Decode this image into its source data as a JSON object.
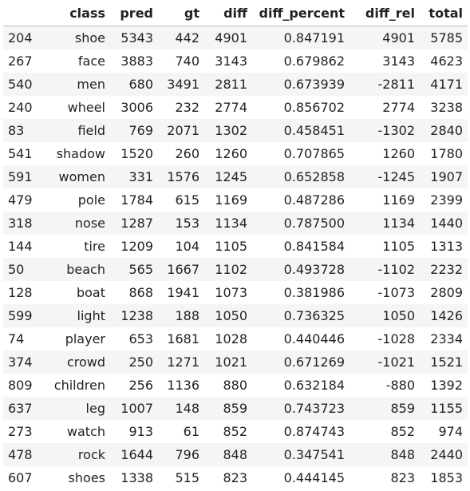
{
  "columns": [
    "",
    "class",
    "pred",
    "gt",
    "diff",
    "diff_percent",
    "diff_rel",
    "total"
  ],
  "rows": [
    [
      "204",
      "shoe",
      "5343",
      "442",
      "4901",
      "0.847191",
      "4901",
      "5785"
    ],
    [
      "267",
      "face",
      "3883",
      "740",
      "3143",
      "0.679862",
      "3143",
      "4623"
    ],
    [
      "540",
      "men",
      "680",
      "3491",
      "2811",
      "0.673939",
      "-2811",
      "4171"
    ],
    [
      "240",
      "wheel",
      "3006",
      "232",
      "2774",
      "0.856702",
      "2774",
      "3238"
    ],
    [
      "83",
      "field",
      "769",
      "2071",
      "1302",
      "0.458451",
      "-1302",
      "2840"
    ],
    [
      "541",
      "shadow",
      "1520",
      "260",
      "1260",
      "0.707865",
      "1260",
      "1780"
    ],
    [
      "591",
      "women",
      "331",
      "1576",
      "1245",
      "0.652858",
      "-1245",
      "1907"
    ],
    [
      "479",
      "pole",
      "1784",
      "615",
      "1169",
      "0.487286",
      "1169",
      "2399"
    ],
    [
      "318",
      "nose",
      "1287",
      "153",
      "1134",
      "0.787500",
      "1134",
      "1440"
    ],
    [
      "144",
      "tire",
      "1209",
      "104",
      "1105",
      "0.841584",
      "1105",
      "1313"
    ],
    [
      "50",
      "beach",
      "565",
      "1667",
      "1102",
      "0.493728",
      "-1102",
      "2232"
    ],
    [
      "128",
      "boat",
      "868",
      "1941",
      "1073",
      "0.381986",
      "-1073",
      "2809"
    ],
    [
      "599",
      "light",
      "1238",
      "188",
      "1050",
      "0.736325",
      "1050",
      "1426"
    ],
    [
      "74",
      "player",
      "653",
      "1681",
      "1028",
      "0.440446",
      "-1028",
      "2334"
    ],
    [
      "374",
      "crowd",
      "250",
      "1271",
      "1021",
      "0.671269",
      "-1021",
      "1521"
    ],
    [
      "809",
      "children",
      "256",
      "1136",
      "880",
      "0.632184",
      "-880",
      "1392"
    ],
    [
      "637",
      "leg",
      "1007",
      "148",
      "859",
      "0.743723",
      "859",
      "1155"
    ],
    [
      "273",
      "watch",
      "913",
      "61",
      "852",
      "0.874743",
      "852",
      "974"
    ],
    [
      "478",
      "rock",
      "1644",
      "796",
      "848",
      "0.347541",
      "848",
      "2440"
    ],
    [
      "607",
      "shoes",
      "1338",
      "515",
      "823",
      "0.444145",
      "823",
      "1853"
    ]
  ]
}
